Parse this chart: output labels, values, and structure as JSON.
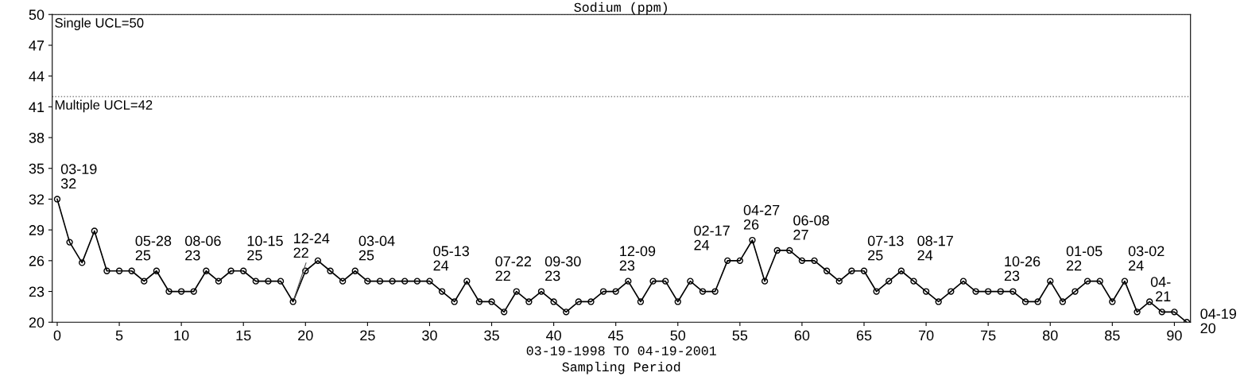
{
  "chart_data": {
    "type": "line",
    "title": "Sodium (ppm)",
    "xlabel": "03-19-1998 TO 04-19-2001\nSampling Period",
    "x": [
      0,
      1,
      2,
      3,
      4,
      5,
      6,
      7,
      8,
      9,
      10,
      11,
      12,
      13,
      14,
      15,
      16,
      17,
      18,
      19,
      20,
      21,
      22,
      23,
      24,
      25,
      26,
      27,
      28,
      29,
      30,
      31,
      32,
      33,
      34,
      35,
      36,
      37,
      38,
      39,
      40,
      41,
      42,
      43,
      44,
      45,
      46,
      47,
      48,
      49,
      50,
      51,
      52,
      53,
      54,
      55,
      56,
      57,
      58,
      59,
      60,
      61,
      62,
      63,
      64,
      65,
      66,
      67,
      68,
      69,
      70,
      71,
      72,
      73,
      74,
      75,
      76,
      77,
      78,
      79,
      80,
      81,
      82,
      83,
      84,
      85,
      86,
      87,
      88,
      89,
      90,
      91
    ],
    "series": [
      {
        "color": "#000000",
        "values": [
          32,
          27.8,
          25.8,
          28.9,
          25,
          25,
          25,
          24,
          25,
          23,
          23,
          23,
          25,
          24,
          25,
          25,
          24,
          24,
          24,
          22,
          25,
          26,
          25,
          24,
          25,
          24,
          24,
          24,
          24,
          24,
          24,
          23,
          22,
          24,
          22,
          22,
          21,
          23,
          22,
          23,
          22,
          21,
          22,
          22,
          23,
          23,
          24,
          22,
          24,
          24,
          22,
          24,
          23,
          23,
          26,
          26,
          28,
          24,
          27,
          27,
          26,
          26,
          25,
          24,
          25,
          25,
          23,
          24,
          25,
          24,
          23,
          22,
          23,
          24,
          23,
          23,
          23,
          23,
          22,
          22,
          24,
          22,
          23,
          24,
          24,
          22,
          24,
          21,
          22,
          21,
          21,
          20
        ]
      }
    ],
    "marker": "circle",
    "line_style": "solid",
    "grid": false,
    "xlim": [
      -0.4,
      91.3
    ],
    "xticks": [
      0,
      5,
      10,
      15,
      20,
      25,
      30,
      35,
      40,
      45,
      50,
      55,
      60,
      65,
      70,
      75,
      80,
      85,
      90
    ],
    "ylim": [
      20,
      50
    ],
    "yticks": [
      20,
      23,
      26,
      29,
      32,
      35,
      38,
      41,
      44,
      47,
      50
    ],
    "ref_lines": [
      {
        "axis": "y",
        "value": 50,
        "label": "Single UCL=50",
        "line_style": "dotted",
        "color": "#808080"
      },
      {
        "axis": "y",
        "value": 42,
        "label": "Multiple UCL=42",
        "line_style": "dotted",
        "color": "#808080"
      }
    ],
    "annotations": [
      {
        "text": "03-19\n32",
        "x": 0,
        "y": 32
      },
      {
        "text": "05-28\n25",
        "x": 6,
        "y": 25
      },
      {
        "text": "08-06\n23",
        "x": 10,
        "y": 23
      },
      {
        "text": "10-15\n25",
        "x": 15,
        "y": 25
      },
      {
        "text": "12-24\n22",
        "x": 19,
        "y": 22
      },
      {
        "text": "03-04\n25",
        "x": 24,
        "y": 25
      },
      {
        "text": "05-13\n24",
        "x": 30,
        "y": 24
      },
      {
        "text": "07-22\n22",
        "x": 35,
        "y": 22
      },
      {
        "text": "09-30\n23",
        "x": 39,
        "y": 23
      },
      {
        "text": "12-09\n23",
        "x": 45,
        "y": 23
      },
      {
        "text": "02-17\n24",
        "x": 51,
        "y": 24
      },
      {
        "text": "04-27\n26",
        "x": 55,
        "y": 26
      },
      {
        "text": "06-08\n27",
        "x": 59,
        "y": 27
      },
      {
        "text": "07-13\n25",
        "x": 65,
        "y": 25
      },
      {
        "text": "08-17\n24",
        "x": 69,
        "y": 24
      },
      {
        "text": "10-26\n23",
        "x": 76,
        "y": 23
      },
      {
        "text": "01-05\n22",
        "x": 81,
        "y": 22
      },
      {
        "text": "03-02\n24",
        "x": 86,
        "y": 24
      },
      {
        "text": "04-\n21",
        "x": 90,
        "y": 21
      },
      {
        "text": "04-19\n20",
        "x": 91,
        "y": 20
      }
    ]
  }
}
